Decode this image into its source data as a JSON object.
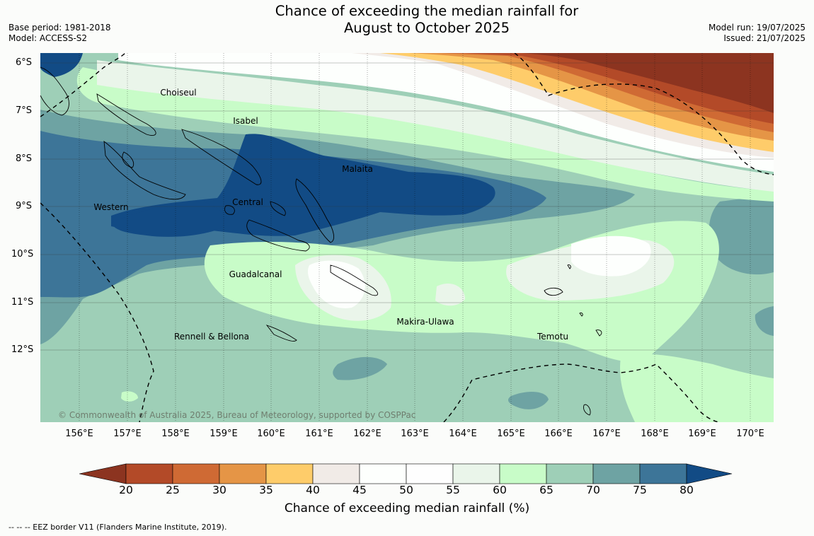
{
  "title": {
    "line1": "Chance of exceeding the median rainfall for",
    "line2": "August to October 2025"
  },
  "meta": {
    "base_period": "Base period: 1981-2018",
    "model": "Model: ACCESS-S2",
    "model_run": "Model run: 19/07/2025",
    "issued": "Issued: 21/07/2025"
  },
  "map": {
    "lat_labels": [
      "6°S",
      "7°S",
      "8°S",
      "9°S",
      "10°S",
      "11°S",
      "12°S"
    ],
    "lon_labels": [
      "156°E",
      "157°E",
      "158°E",
      "159°E",
      "160°E",
      "161°E",
      "162°E",
      "163°E",
      "164°E",
      "165°E",
      "166°E",
      "167°E",
      "168°E",
      "169°E",
      "170°E"
    ],
    "places": [
      "Choiseul",
      "Isabel",
      "Malaita",
      "Western",
      "Central",
      "Guadalcanal",
      "Makira-Ulawa",
      "Rennell & Bellona",
      "Temotu"
    ],
    "copyright": "© Commonwealth of Australia 2025, Bureau of Meteorology, supported by COSPPac",
    "eez_style": "dashed",
    "grid": true
  },
  "legend": {
    "ticks": [
      "20",
      "25",
      "30",
      "35",
      "40",
      "45",
      "50",
      "55",
      "60",
      "65",
      "70",
      "75",
      "80"
    ],
    "colors": [
      "#8c3420",
      "#b34a28",
      "#cf6a34",
      "#e59546",
      "#fecc6a",
      "#f1ebe7",
      "#fdfffd",
      "#fefefe",
      "#eaf5ea",
      "#c8fcc8",
      "#9ecfb7",
      "#6ea3a3",
      "#3d7598",
      "#124b85"
    ],
    "title": "Chance of exceeding median rainfall (%)"
  },
  "footer": "--  --  -- EEZ border V11 (Flanders Marine Institute, 2019)."
}
